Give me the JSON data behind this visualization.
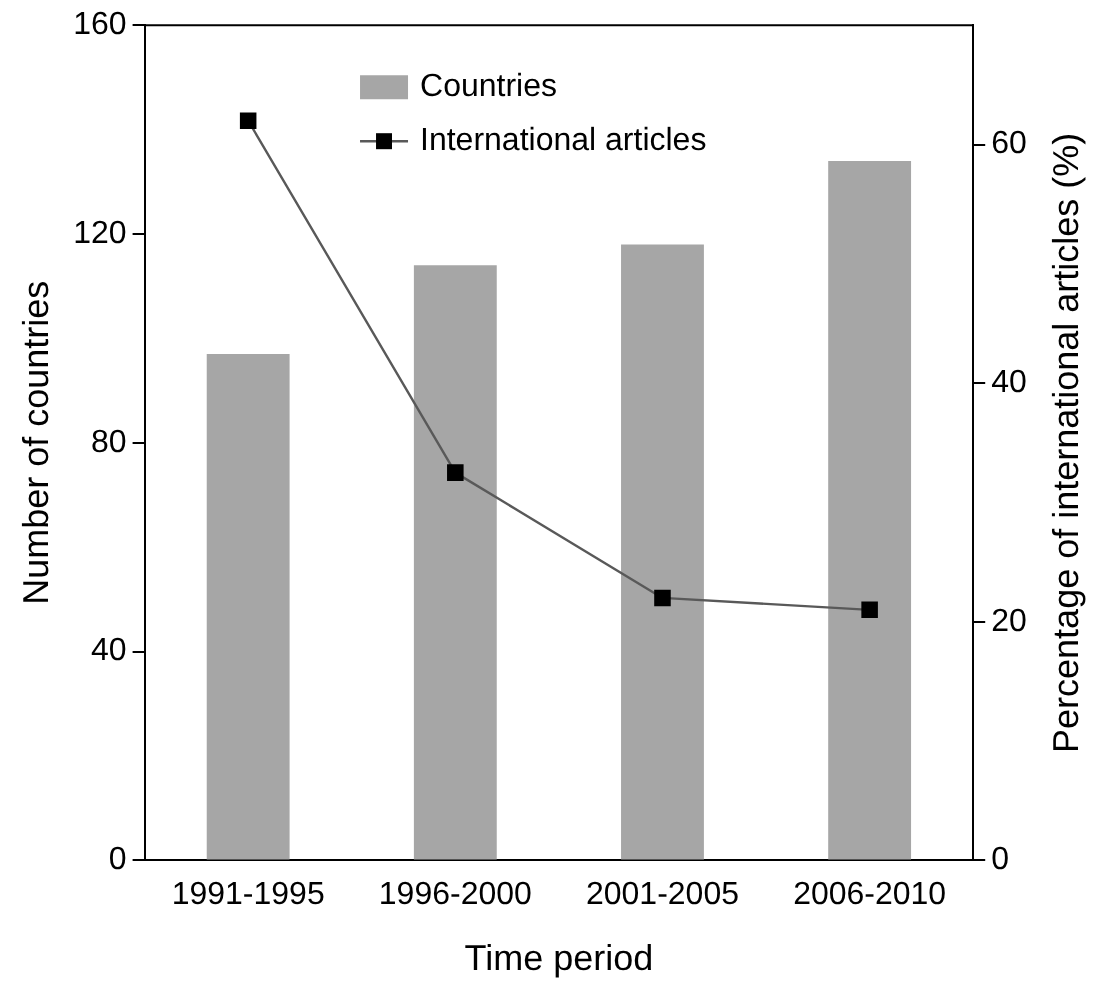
{
  "chart_data": {
    "type": "bar",
    "xlabel": "Time period",
    "ylabel": "Number of countries",
    "y2label": "Percentage of international articles (%)",
    "categories": [
      "1991-1995",
      "1996-2000",
      "2001-2005",
      "2006-2010"
    ],
    "series": [
      {
        "name": "Countries",
        "color": "#a6a6a6",
        "values": [
          97,
          114,
          118,
          134
        ]
      },
      {
        "name": "International articles",
        "type": "line",
        "axis": "y2",
        "color": "#000000",
        "values": [
          62,
          32.5,
          22,
          21
        ]
      }
    ],
    "ylim": [
      0,
      160
    ],
    "yticks": [
      0,
      40,
      80,
      120,
      160
    ],
    "y2lim": [
      0,
      70
    ],
    "y2ticks": [
      0,
      20,
      40,
      60
    ],
    "grid": false,
    "legend": "top",
    "marker": "square",
    "line_style": "solid"
  }
}
